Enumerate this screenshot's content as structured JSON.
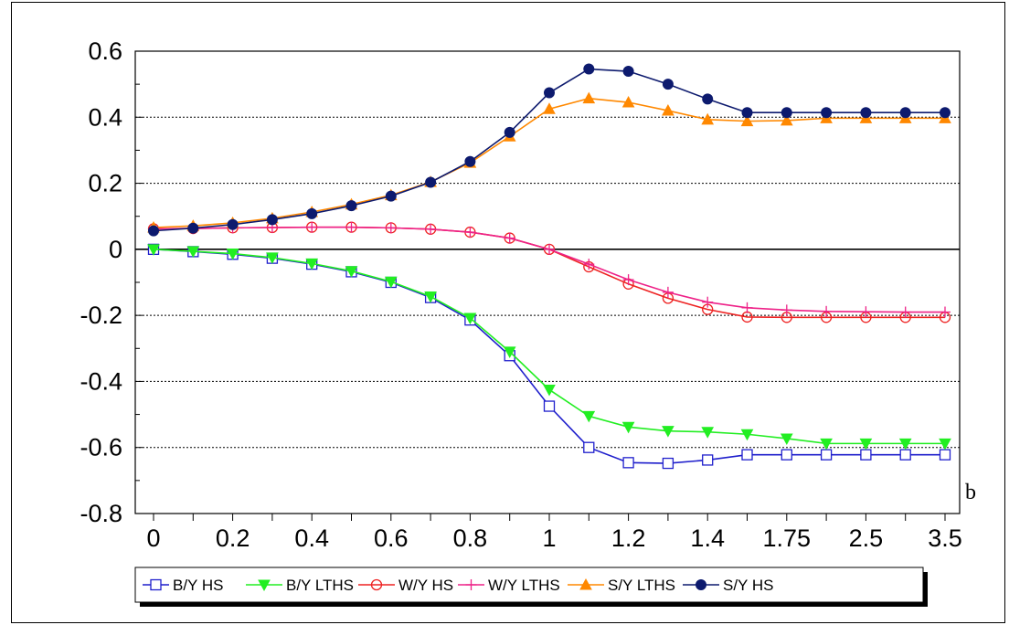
{
  "chart_data": {
    "type": "line",
    "title": "",
    "xlabel": "b",
    "ylabel": "",
    "categories": [
      "0",
      "0.1",
      "0.2",
      "0.3",
      "0.4",
      "0.5",
      "0.6",
      "0.7",
      "0.8",
      "0.9",
      "1",
      "1.1",
      "1.2",
      "1.3",
      "1.4",
      "1.5",
      "1.75",
      "2",
      "2.5",
      "3",
      "3.5"
    ],
    "x_tick_labels": [
      "0",
      "0.2",
      "0.4",
      "0.6",
      "0.8",
      "1",
      "1.2",
      "1.4",
      "1.75",
      "2.5",
      "3.5"
    ],
    "y_tick_labels": [
      "0.6",
      "0.4",
      "0.2",
      "0",
      "-0.2",
      "-0.4",
      "-0.6",
      "-0.8"
    ],
    "y_ticks": [
      0.6,
      0.4,
      0.2,
      0,
      -0.2,
      -0.4,
      -0.6,
      -0.8
    ],
    "ylim": [
      -0.8,
      0.6
    ],
    "grid": "dotted horizontal at 0.4, 0.2, -0.2, -0.4, -0.6; solid at 0",
    "legend_position": "bottom",
    "series": [
      {
        "name": "B/Y HS",
        "color": "#1f1fcc",
        "marker": "open-square",
        "values": [
          0,
          -0.007,
          -0.015,
          -0.027,
          -0.045,
          -0.068,
          -0.1,
          -0.146,
          -0.214,
          -0.322,
          -0.475,
          -0.6,
          -0.646,
          -0.648,
          -0.638,
          -0.622,
          -0.622,
          -0.622,
          -0.622,
          -0.622,
          -0.622
        ]
      },
      {
        "name": "B/Y LTHS",
        "color": "#22ee22",
        "marker": "filled-triangle-down",
        "values": [
          0,
          -0.006,
          -0.013,
          -0.025,
          -0.043,
          -0.066,
          -0.098,
          -0.143,
          -0.208,
          -0.31,
          -0.425,
          -0.505,
          -0.538,
          -0.55,
          -0.553,
          -0.56,
          -0.573,
          -0.588,
          -0.588,
          -0.588,
          -0.588
        ]
      },
      {
        "name": "W/Y HS",
        "color": "#ee2222",
        "marker": "open-circle",
        "values": [
          0.062,
          0.063,
          0.065,
          0.066,
          0.067,
          0.067,
          0.065,
          0.061,
          0.052,
          0.034,
          0,
          -0.053,
          -0.105,
          -0.148,
          -0.182,
          -0.205,
          -0.206,
          -0.206,
          -0.206,
          -0.206,
          -0.206
        ]
      },
      {
        "name": "W/Y LTHS",
        "color": "#ee2288",
        "marker": "plus",
        "values": [
          0.062,
          0.063,
          0.065,
          0.066,
          0.067,
          0.067,
          0.065,
          0.061,
          0.052,
          0.034,
          0,
          -0.045,
          -0.092,
          -0.13,
          -0.16,
          -0.177,
          -0.184,
          -0.188,
          -0.189,
          -0.19,
          -0.19
        ]
      },
      {
        "name": "S/Y LTHS",
        "color": "#ff8800",
        "marker": "filled-triangle-up",
        "values": [
          0.066,
          0.071,
          0.08,
          0.094,
          0.113,
          0.136,
          0.164,
          0.204,
          0.262,
          0.342,
          0.425,
          0.457,
          0.445,
          0.42,
          0.393,
          0.388,
          0.39,
          0.397,
          0.397,
          0.397,
          0.397
        ]
      },
      {
        "name": "S/Y HS",
        "color": "#0d1a6e",
        "marker": "filled-circle",
        "values": [
          0.056,
          0.064,
          0.075,
          0.09,
          0.108,
          0.132,
          0.161,
          0.203,
          0.266,
          0.354,
          0.474,
          0.546,
          0.539,
          0.5,
          0.455,
          0.414,
          0.414,
          0.414,
          0.414,
          0.414,
          0.414
        ]
      }
    ]
  }
}
